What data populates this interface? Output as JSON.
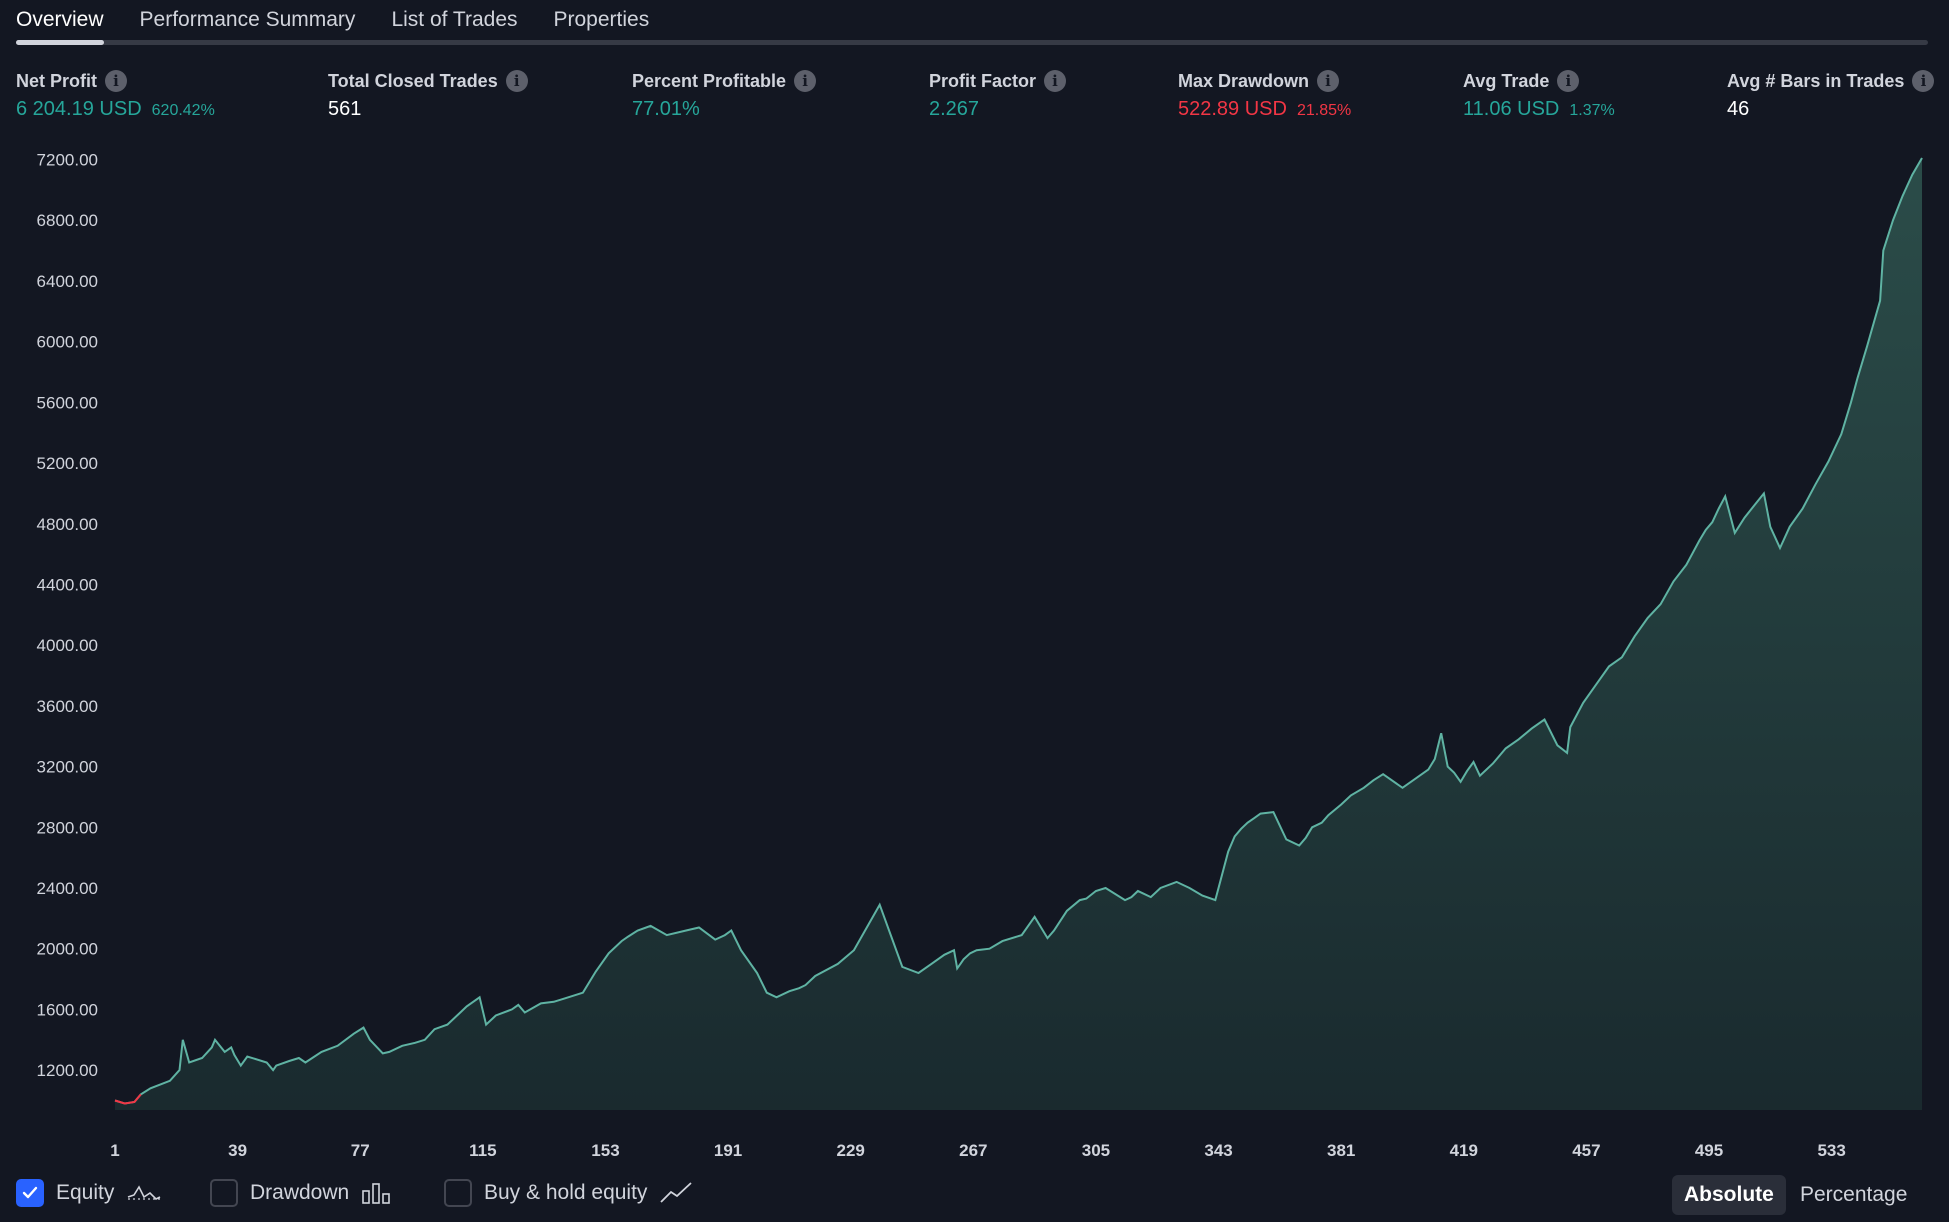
{
  "tabs": [
    {
      "label": "Overview",
      "active": true
    },
    {
      "label": "Performance Summary",
      "active": false
    },
    {
      "label": "List of Trades",
      "active": false
    },
    {
      "label": "Properties",
      "active": false
    }
  ],
  "metrics": {
    "net_profit": {
      "label": "Net Profit",
      "value": "6 204.19 USD",
      "sub": "620.42%"
    },
    "total_closed_trades": {
      "label": "Total Closed Trades",
      "value": "561"
    },
    "percent_profitable": {
      "label": "Percent Profitable",
      "value": "77.01%"
    },
    "profit_factor": {
      "label": "Profit Factor",
      "value": "2.267"
    },
    "max_drawdown": {
      "label": "Max Drawdown",
      "value": "522.89 USD",
      "sub": "21.85%"
    },
    "avg_trade": {
      "label": "Avg Trade",
      "value": "11.06 USD",
      "sub": "1.37%"
    },
    "avg_bars": {
      "label": "Avg # Bars in Trades",
      "value": "46"
    }
  },
  "colors": {
    "background": "#131722",
    "positive": "#26a69a",
    "negative": "#f23645",
    "line": "#5fb3a3",
    "checkbox": "#2962ff"
  },
  "chart_data": {
    "type": "area",
    "y_ticks": [
      "1200.00",
      "1600.00",
      "2000.00",
      "2400.00",
      "2800.00",
      "3200.00",
      "3600.00",
      "4000.00",
      "4400.00",
      "4800.00",
      "5200.00",
      "5600.00",
      "6000.00",
      "6400.00",
      "6800.00",
      "7200.00"
    ],
    "x_ticks": [
      "1",
      "39",
      "77",
      "115",
      "153",
      "191",
      "229",
      "267",
      "305",
      "343",
      "381",
      "419",
      "457",
      "495",
      "533"
    ],
    "ylim": [
      990,
      7210
    ],
    "xlim": [
      1,
      561
    ],
    "x": [
      1,
      4,
      7,
      9,
      12,
      18,
      21,
      22,
      24,
      28,
      31,
      32,
      35,
      37,
      38,
      40,
      42,
      48,
      50,
      51,
      55,
      58,
      60,
      65,
      70,
      75,
      78,
      80,
      84,
      86,
      90,
      94,
      97,
      100,
      104,
      108,
      110,
      114,
      116,
      119,
      124,
      126,
      128,
      133,
      137,
      140,
      146,
      150,
      154,
      158,
      160,
      163,
      167,
      172,
      178,
      182,
      187,
      190,
      192,
      195,
      200,
      203,
      206,
      210,
      213,
      215,
      218,
      225,
      230,
      238,
      245,
      250,
      254,
      258,
      261,
      262,
      263,
      264,
      266,
      268,
      272,
      276,
      282,
      286,
      290,
      292,
      296,
      300,
      302,
      305,
      308,
      314,
      316,
      318,
      322,
      325,
      330,
      334,
      338,
      342,
      346,
      348,
      350,
      352,
      354,
      356,
      360,
      364,
      368,
      370,
      372,
      375,
      377,
      381,
      384,
      388,
      391,
      394,
      400,
      404,
      408,
      410,
      412,
      414,
      416,
      418,
      420,
      422,
      424,
      428,
      432,
      436,
      440,
      444,
      448,
      451,
      452,
      456,
      460,
      464,
      468,
      472,
      476,
      480,
      484,
      488,
      492,
      494,
      496,
      498,
      500,
      503,
      506,
      509,
      512,
      514,
      517,
      520,
      524,
      528,
      532,
      536,
      539,
      541,
      544,
      546,
      548,
      549,
      552,
      555,
      558,
      561
    ],
    "equity": [
      1000,
      980,
      990,
      1040,
      1080,
      1130,
      1200,
      1400,
      1250,
      1280,
      1350,
      1400,
      1320,
      1350,
      1300,
      1230,
      1290,
      1250,
      1200,
      1230,
      1260,
      1280,
      1250,
      1320,
      1360,
      1440,
      1480,
      1400,
      1310,
      1320,
      1360,
      1380,
      1400,
      1470,
      1500,
      1580,
      1620,
      1680,
      1500,
      1560,
      1600,
      1630,
      1580,
      1640,
      1650,
      1670,
      1710,
      1850,
      1970,
      2050,
      2080,
      2120,
      2150,
      2090,
      2120,
      2140,
      2060,
      2090,
      2120,
      1990,
      1840,
      1710,
      1680,
      1720,
      1740,
      1760,
      1820,
      1900,
      1990,
      2290,
      1880,
      1840,
      1900,
      1960,
      1990,
      1870,
      1900,
      1930,
      1970,
      1990,
      2000,
      2050,
      2090,
      2210,
      2070,
      2120,
      2250,
      2320,
      2330,
      2380,
      2400,
      2320,
      2340,
      2380,
      2340,
      2400,
      2440,
      2400,
      2350,
      2320,
      2640,
      2740,
      2790,
      2830,
      2860,
      2890,
      2900,
      2720,
      2680,
      2730,
      2800,
      2830,
      2880,
      2950,
      3010,
      3060,
      3110,
      3150,
      3060,
      3120,
      3180,
      3250,
      3420,
      3200,
      3160,
      3100,
      3170,
      3230,
      3140,
      3220,
      3320,
      3380,
      3450,
      3510,
      3340,
      3290,
      3460,
      3620,
      3740,
      3860,
      3920,
      4060,
      4180,
      4270,
      4420,
      4530,
      4690,
      4760,
      4810,
      4900,
      4980,
      4740,
      4840,
      4920,
      5000,
      4780,
      4640,
      4780,
      4900,
      5060,
      5210,
      5390,
      5600,
      5760,
      5970,
      6120,
      6270,
      6600,
      6800,
      6960,
      7100,
      7210
    ]
  },
  "footer": {
    "equity": {
      "label": "Equity",
      "checked": true
    },
    "drawdown": {
      "label": "Drawdown",
      "checked": false
    },
    "buy_hold": {
      "label": "Buy & hold equity",
      "checked": false
    },
    "modes": {
      "absolute": "Absolute",
      "percentage": "Percentage",
      "active": "absolute"
    }
  }
}
